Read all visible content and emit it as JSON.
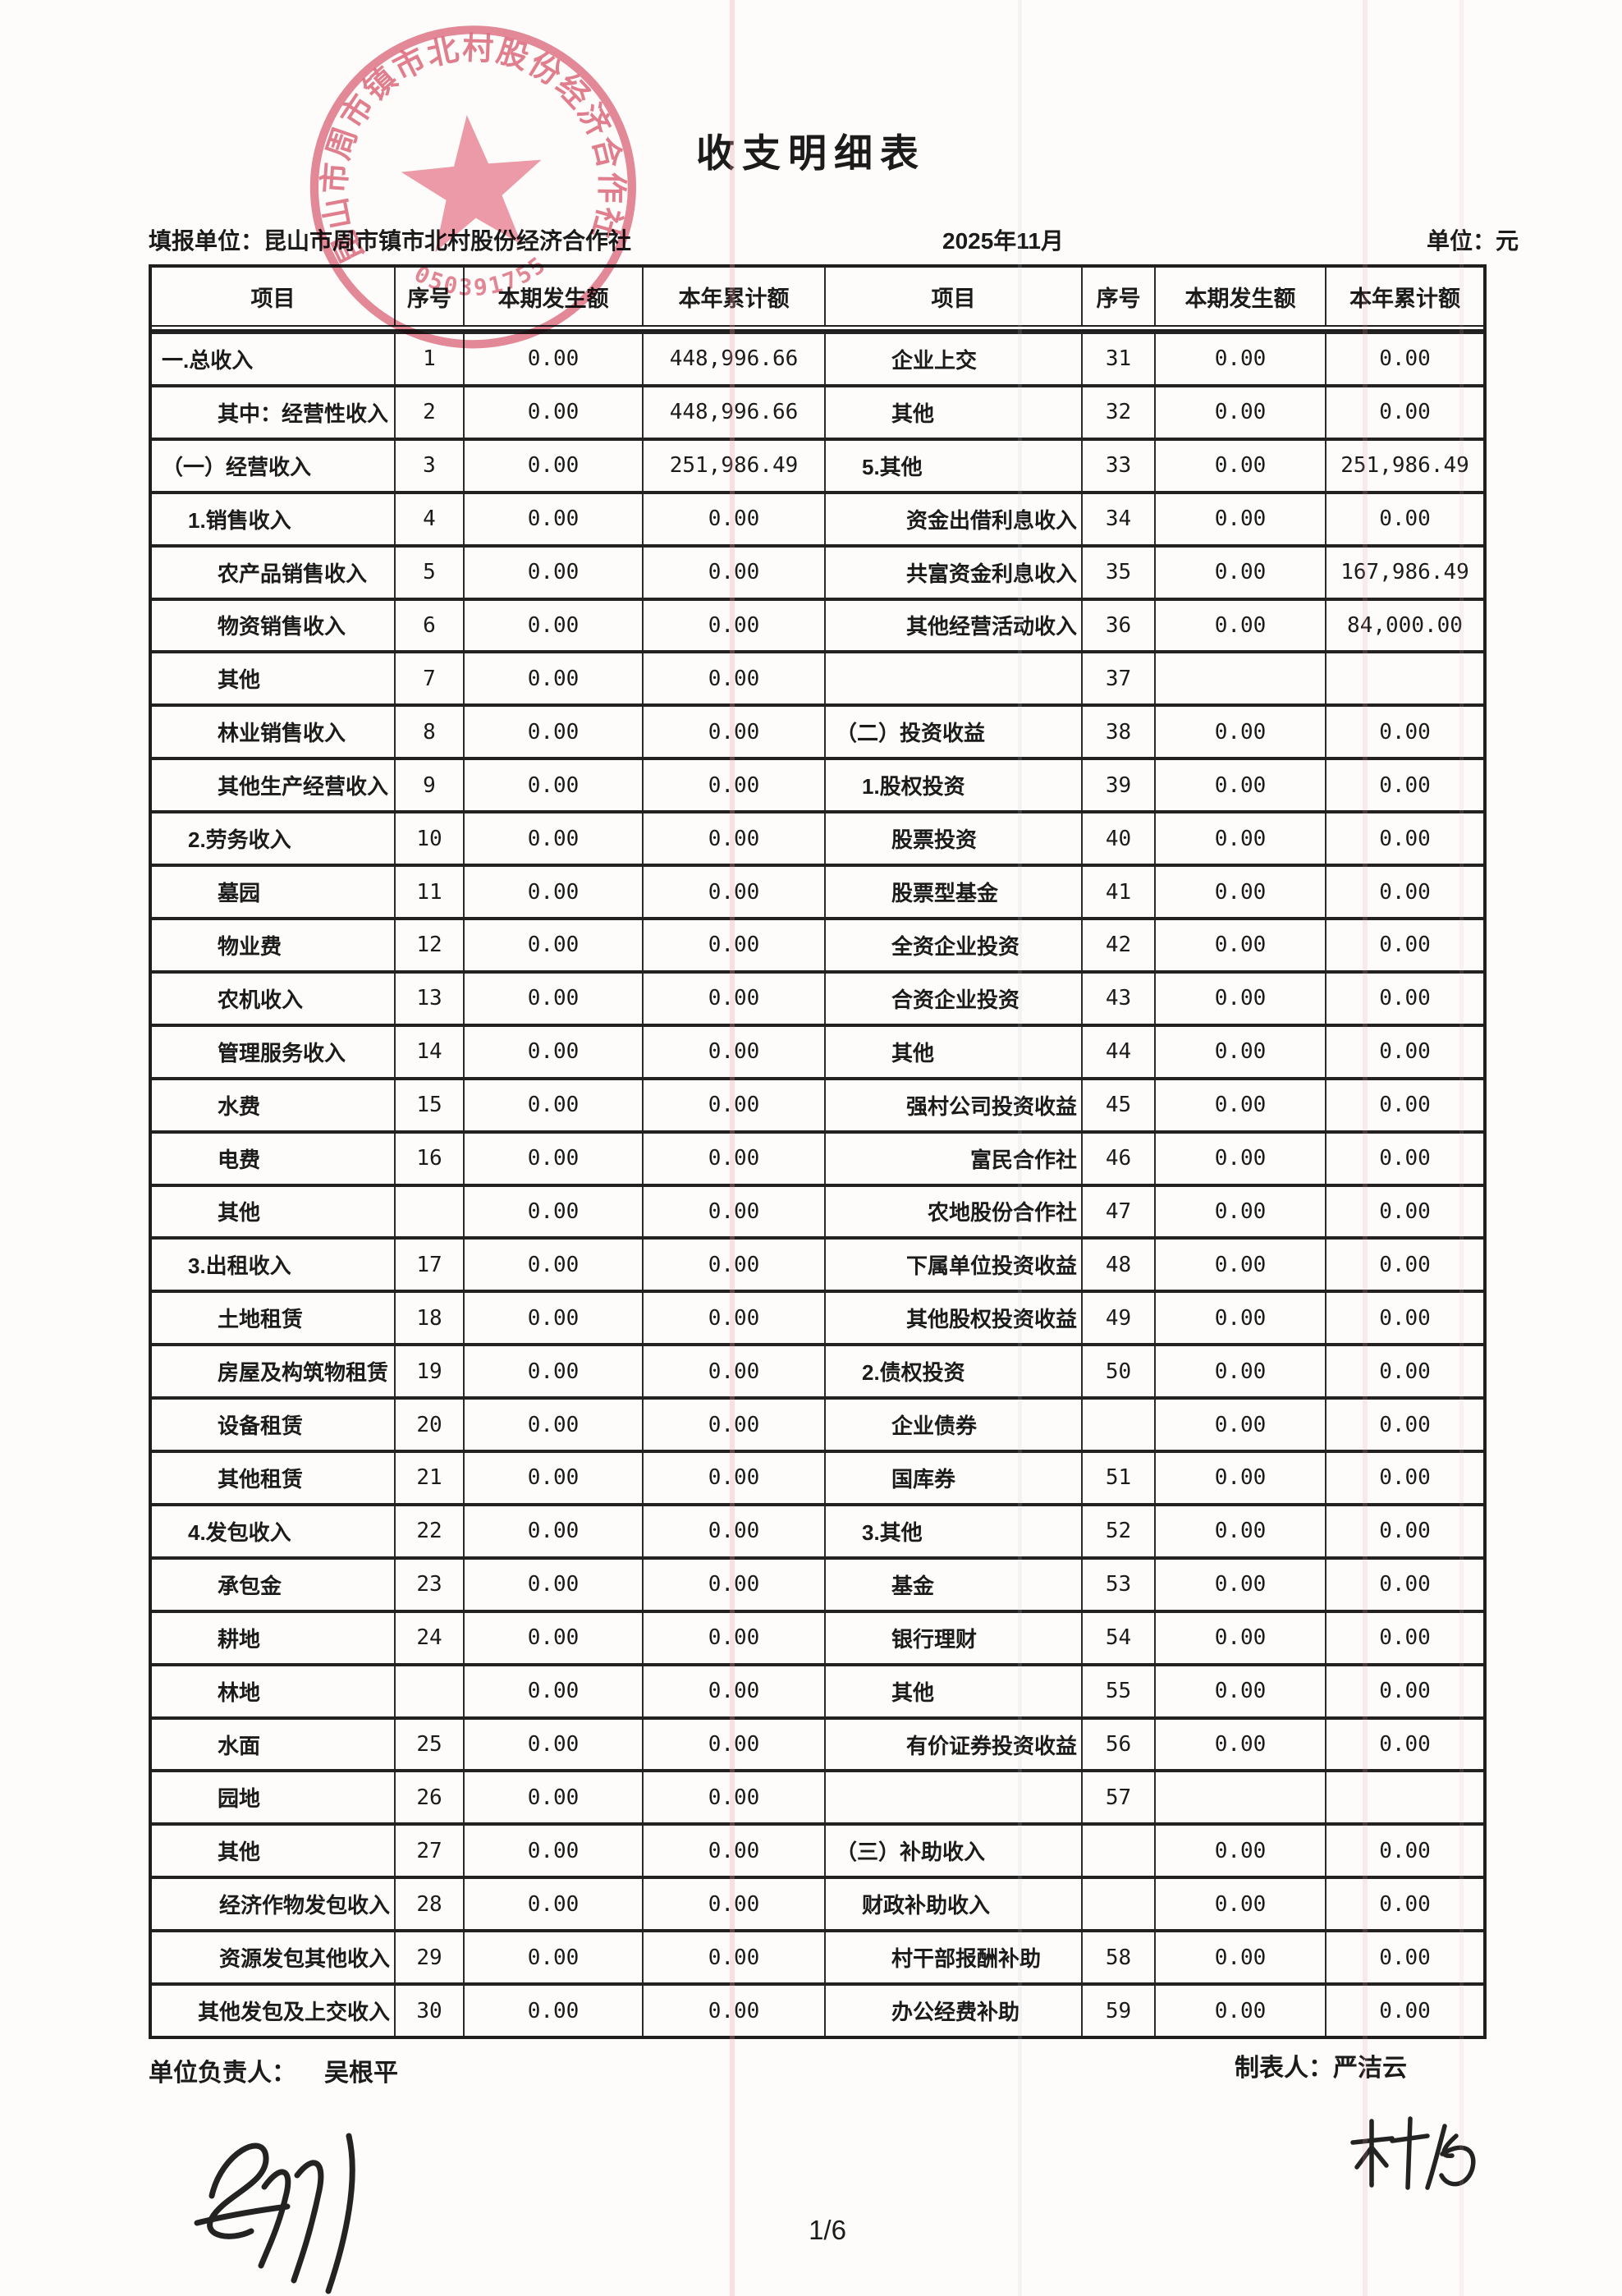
{
  "page": {
    "title": "收支明细表",
    "report_unit_label": "填报单位：",
    "report_unit": "昆山市周市镇市北村股份经济合作社",
    "period": "2025年11月",
    "unit_label": "单位：元",
    "page_number": "1/6",
    "footer": {
      "left_label": "单位负责人：",
      "left_name": "吴根平",
      "right_label": "制表人：",
      "right_name": "严洁云",
      "left_signature_name": "吴根平",
      "right_signature_name": "林娟"
    }
  },
  "seal": {
    "text": "昆山市周市镇市北村股份经济合作社",
    "number": "050391755"
  },
  "table": {
    "headers": [
      "项目",
      "序号",
      "本期发生额",
      "本年累计额"
    ],
    "left_rows": [
      {
        "item": "一.总收入",
        "indent": 0,
        "no": "1",
        "current": "0.00",
        "ytd": "448,996.66"
      },
      {
        "item": "其中：经营性收入",
        "indent": 2,
        "no": "2",
        "current": "0.00",
        "ytd": "448,996.66"
      },
      {
        "item": "（一）经营收入",
        "indent": 0,
        "no": "3",
        "current": "0.00",
        "ytd": "251,986.49"
      },
      {
        "item": "1.销售收入",
        "indent": 1,
        "no": "4",
        "current": "0.00",
        "ytd": "0.00"
      },
      {
        "item": "农产品销售收入",
        "indent": 2,
        "no": "5",
        "current": "0.00",
        "ytd": "0.00"
      },
      {
        "item": "物资销售收入",
        "indent": 2,
        "no": "6",
        "current": "0.00",
        "ytd": "0.00"
      },
      {
        "item": "其他",
        "indent": 2,
        "no": "7",
        "current": "0.00",
        "ytd": "0.00"
      },
      {
        "item": "林业销售收入",
        "indent": 2,
        "no": "8",
        "current": "0.00",
        "ytd": "0.00"
      },
      {
        "item": "其他生产经营收入",
        "indent": 2,
        "no": "9",
        "current": "0.00",
        "ytd": "0.00"
      },
      {
        "item": "2.劳务收入",
        "indent": 1,
        "no": "10",
        "current": "0.00",
        "ytd": "0.00"
      },
      {
        "item": "墓园",
        "indent": 2,
        "no": "11",
        "current": "0.00",
        "ytd": "0.00"
      },
      {
        "item": "物业费",
        "indent": 2,
        "no": "12",
        "current": "0.00",
        "ytd": "0.00"
      },
      {
        "item": "农机收入",
        "indent": 2,
        "no": "13",
        "current": "0.00",
        "ytd": "0.00"
      },
      {
        "item": "管理服务收入",
        "indent": 2,
        "no": "14",
        "current": "0.00",
        "ytd": "0.00"
      },
      {
        "item": "水费",
        "indent": 2,
        "no": "15",
        "current": "0.00",
        "ytd": "0.00"
      },
      {
        "item": "电费",
        "indent": 2,
        "no": "16",
        "current": "0.00",
        "ytd": "0.00"
      },
      {
        "item": "其他",
        "indent": 2,
        "no": "",
        "current": "0.00",
        "ytd": "0.00"
      },
      {
        "item": "3.出租收入",
        "indent": 1,
        "no": "17",
        "current": "0.00",
        "ytd": "0.00"
      },
      {
        "item": "土地租赁",
        "indent": 2,
        "no": "18",
        "current": "0.00",
        "ytd": "0.00"
      },
      {
        "item": "房屋及构筑物租赁",
        "indent": 2,
        "no": "19",
        "current": "0.00",
        "ytd": "0.00"
      },
      {
        "item": "设备租赁",
        "indent": 2,
        "no": "20",
        "current": "0.00",
        "ytd": "0.00"
      },
      {
        "item": "其他租赁",
        "indent": 2,
        "no": "21",
        "current": "0.00",
        "ytd": "0.00"
      },
      {
        "item": "4.发包收入",
        "indent": 1,
        "no": "22",
        "current": "0.00",
        "ytd": "0.00"
      },
      {
        "item": "承包金",
        "indent": 2,
        "no": "23",
        "current": "0.00",
        "ytd": "0.00"
      },
      {
        "item": "耕地",
        "indent": 2,
        "no": "24",
        "current": "0.00",
        "ytd": "0.00"
      },
      {
        "item": "林地",
        "indent": 2,
        "no": "",
        "current": "0.00",
        "ytd": "0.00"
      },
      {
        "item": "水面",
        "indent": 2,
        "no": "25",
        "current": "0.00",
        "ytd": "0.00"
      },
      {
        "item": "园地",
        "indent": 2,
        "no": "26",
        "current": "0.00",
        "ytd": "0.00"
      },
      {
        "item": "其他",
        "indent": 2,
        "no": "27",
        "current": "0.00",
        "ytd": "0.00"
      },
      {
        "item": "经济作物发包收入",
        "indent": 3,
        "no": "28",
        "current": "0.00",
        "ytd": "0.00"
      },
      {
        "item": "资源发包其他收入",
        "indent": 3,
        "no": "29",
        "current": "0.00",
        "ytd": "0.00"
      },
      {
        "item": "其他发包及上交收入",
        "indent": 3,
        "no": "30",
        "current": "0.00",
        "ytd": "0.00"
      }
    ],
    "right_rows": [
      {
        "item": "企业上交",
        "indent": 2,
        "no": "31",
        "current": "0.00",
        "ytd": "0.00"
      },
      {
        "item": "其他",
        "indent": 2,
        "no": "32",
        "current": "0.00",
        "ytd": "0.00"
      },
      {
        "item": "5.其他",
        "indent": 1,
        "no": "33",
        "current": "0.00",
        "ytd": "251,986.49"
      },
      {
        "item": "资金出借利息收入",
        "indent": 3,
        "no": "34",
        "current": "0.00",
        "ytd": "0.00"
      },
      {
        "item": "共富资金利息收入",
        "indent": 3,
        "no": "35",
        "current": "0.00",
        "ytd": "167,986.49"
      },
      {
        "item": "其他经营活动收入",
        "indent": 3,
        "no": "36",
        "current": "0.00",
        "ytd": "84,000.00"
      },
      {
        "item": "",
        "indent": 0,
        "no": "37",
        "current": "",
        "ytd": ""
      },
      {
        "item": "（二）投资收益",
        "indent": 0,
        "no": "38",
        "current": "0.00",
        "ytd": "0.00"
      },
      {
        "item": "1.股权投资",
        "indent": 1,
        "no": "39",
        "current": "0.00",
        "ytd": "0.00"
      },
      {
        "item": "股票投资",
        "indent": 2,
        "no": "40",
        "current": "0.00",
        "ytd": "0.00"
      },
      {
        "item": "股票型基金",
        "indent": 2,
        "no": "41",
        "current": "0.00",
        "ytd": "0.00"
      },
      {
        "item": "全资企业投资",
        "indent": 2,
        "no": "42",
        "current": "0.00",
        "ytd": "0.00"
      },
      {
        "item": "合资企业投资",
        "indent": 2,
        "no": "43",
        "current": "0.00",
        "ytd": "0.00"
      },
      {
        "item": "其他",
        "indent": 2,
        "no": "44",
        "current": "0.00",
        "ytd": "0.00"
      },
      {
        "item": "强村公司投资收益",
        "indent": 3,
        "no": "45",
        "current": "0.00",
        "ytd": "0.00"
      },
      {
        "item": "富民合作社",
        "indent": 3,
        "no": "46",
        "current": "0.00",
        "ytd": "0.00"
      },
      {
        "item": "农地股份合作社",
        "indent": 3,
        "no": "47",
        "current": "0.00",
        "ytd": "0.00"
      },
      {
        "item": "下属单位投资收益",
        "indent": 3,
        "no": "48",
        "current": "0.00",
        "ytd": "0.00"
      },
      {
        "item": "其他股权投资收益",
        "indent": 3,
        "no": "49",
        "current": "0.00",
        "ytd": "0.00"
      },
      {
        "item": "2.债权投资",
        "indent": 1,
        "no": "50",
        "current": "0.00",
        "ytd": "0.00"
      },
      {
        "item": "企业债券",
        "indent": 2,
        "no": "",
        "current": "0.00",
        "ytd": "0.00"
      },
      {
        "item": "国库券",
        "indent": 2,
        "no": "51",
        "current": "0.00",
        "ytd": "0.00"
      },
      {
        "item": "3.其他",
        "indent": 1,
        "no": "52",
        "current": "0.00",
        "ytd": "0.00"
      },
      {
        "item": "基金",
        "indent": 2,
        "no": "53",
        "current": "0.00",
        "ytd": "0.00"
      },
      {
        "item": "银行理财",
        "indent": 2,
        "no": "54",
        "current": "0.00",
        "ytd": "0.00"
      },
      {
        "item": "其他",
        "indent": 2,
        "no": "55",
        "current": "0.00",
        "ytd": "0.00"
      },
      {
        "item": "有价证券投资收益",
        "indent": 3,
        "no": "56",
        "current": "0.00",
        "ytd": "0.00"
      },
      {
        "item": "",
        "indent": 0,
        "no": "57",
        "current": "",
        "ytd": ""
      },
      {
        "item": "（三）补助收入",
        "indent": 0,
        "no": "",
        "current": "0.00",
        "ytd": "0.00"
      },
      {
        "item": "财政补助收入",
        "indent": 1,
        "no": "",
        "current": "0.00",
        "ytd": "0.00"
      },
      {
        "item": "村干部报酬补助",
        "indent": 2,
        "no": "58",
        "current": "0.00",
        "ytd": "0.00"
      },
      {
        "item": "办公经费补助",
        "indent": 2,
        "no": "59",
        "current": "0.00",
        "ytd": "0.00"
      }
    ]
  }
}
